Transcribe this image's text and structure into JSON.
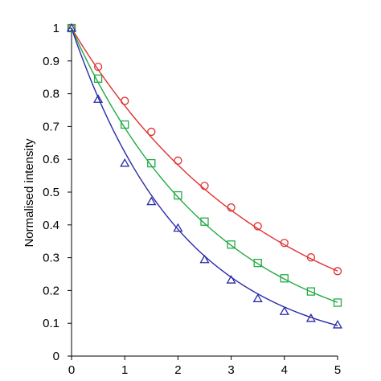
{
  "chart_data": {
    "type": "scatter",
    "title": "",
    "xlabel": "",
    "ylabel": "Normalised intensity",
    "xlim": [
      0,
      5
    ],
    "ylim": [
      0,
      1
    ],
    "xticks": [
      "0",
      "1",
      "2",
      "3",
      "4",
      "5"
    ],
    "yticks": [
      "0",
      "0.1",
      "0.2",
      "0.3",
      "0.4",
      "0.5",
      "0.6",
      "0.7",
      "0.8",
      "0.9",
      "1"
    ],
    "grid": false,
    "legend": "none",
    "x": [
      0,
      0.5,
      1,
      1.5,
      2,
      2.5,
      3,
      3.5,
      4,
      4.5,
      5
    ],
    "series": [
      {
        "marker": "circle",
        "color": "#e03030",
        "values": [
          1.0,
          0.882,
          0.778,
          0.684,
          0.596,
          0.519,
          0.453,
          0.396,
          0.345,
          0.301,
          0.259
        ],
        "fit_rate": 0.27
      },
      {
        "marker": "square",
        "color": "#22aa44",
        "values": [
          1.0,
          0.846,
          0.706,
          0.588,
          0.49,
          0.41,
          0.34,
          0.284,
          0.237,
          0.197,
          0.163
        ],
        "fit_rate": 0.362
      },
      {
        "marker": "triangle",
        "color": "#2a2aa8",
        "values": [
          1.0,
          0.783,
          0.588,
          0.471,
          0.39,
          0.294,
          0.232,
          0.175,
          0.136,
          0.115,
          0.095
        ],
        "fit_rate": 0.475
      }
    ]
  }
}
